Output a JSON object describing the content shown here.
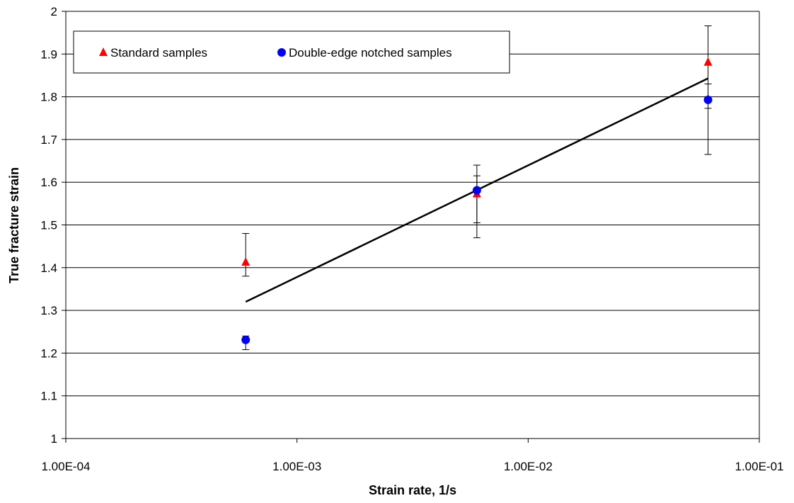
{
  "chart_data": {
    "type": "scatter",
    "xscale": "log",
    "xlim": [
      "1.00E-04",
      "1.00E-01"
    ],
    "ylim": [
      1,
      2
    ],
    "xticks": [
      {
        "value": 0.0001,
        "label": "1.00E-04"
      },
      {
        "value": 0.001,
        "label": "1.00E-03"
      },
      {
        "value": 0.01,
        "label": "1.00E-02"
      },
      {
        "value": 0.1,
        "label": "1.00E-01"
      }
    ],
    "yticks": [
      {
        "value": 1,
        "label": "1"
      },
      {
        "value": 1.1,
        "label": "1.1"
      },
      {
        "value": 1.2,
        "label": "1.2"
      },
      {
        "value": 1.3,
        "label": "1.3"
      },
      {
        "value": 1.4,
        "label": "1.4"
      },
      {
        "value": 1.5,
        "label": "1.5"
      },
      {
        "value": 1.6,
        "label": "1.6"
      },
      {
        "value": 1.7,
        "label": "1.7"
      },
      {
        "value": 1.8,
        "label": "1.8"
      },
      {
        "value": 1.9,
        "label": "1.9"
      },
      {
        "value": 2,
        "label": "2"
      }
    ],
    "xlabel": "Strain rate, 1/s",
    "ylabel": "True fracture strain",
    "grid": "horizontal",
    "legend_position": "top-left",
    "series": [
      {
        "name": "Standard samples",
        "marker": "triangle",
        "color": "#ff0000",
        "points": [
          {
            "x": 0.0006,
            "y": 1.413,
            "err_low": 1.38,
            "err_high": 1.48
          },
          {
            "x": 0.006,
            "y": 1.573,
            "err_low": 1.47,
            "err_high": 1.64
          },
          {
            "x": 0.06,
            "y": 1.881,
            "err_low": 1.773,
            "err_high": 1.966
          }
        ]
      },
      {
        "name": "Double-edge notched samples",
        "marker": "circle",
        "color": "#0000ff",
        "points": [
          {
            "x": 0.0006,
            "y": 1.231,
            "err_low": 1.208,
            "err_high": 1.24
          },
          {
            "x": 0.006,
            "y": 1.581,
            "err_low": 1.505,
            "err_high": 1.615
          },
          {
            "x": 0.06,
            "y": 1.793,
            "err_low": 1.665,
            "err_high": 1.83
          }
        ]
      }
    ],
    "trendline": {
      "color": "#000000",
      "points": [
        {
          "x": 0.0006,
          "y": 1.32
        },
        {
          "x": 0.06,
          "y": 1.843
        }
      ]
    }
  }
}
